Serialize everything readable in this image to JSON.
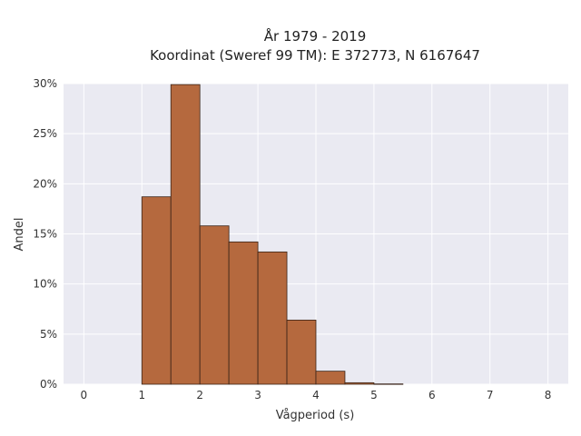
{
  "chart_data": {
    "type": "bar",
    "title_line1": "År 1979 - 2019",
    "title_line2": "Koordinat (Sweref 99 TM): E 372773, N 6167647",
    "xlabel": "Vågperiod (s)",
    "ylabel": "Andel",
    "xlim": [
      -0.35,
      8.35
    ],
    "ylim": [
      0,
      0.3
    ],
    "x_ticks": [
      0,
      1,
      2,
      3,
      4,
      5,
      6,
      7,
      8
    ],
    "x_tick_labels": [
      "0",
      "1",
      "2",
      "3",
      "4",
      "5",
      "6",
      "7",
      "8"
    ],
    "y_ticks": [
      0,
      0.05,
      0.1,
      0.15,
      0.2,
      0.25,
      0.3
    ],
    "y_tick_labels": [
      "0%",
      "5%",
      "10%",
      "15%",
      "20%",
      "25%",
      "30%"
    ],
    "bin_width": 0.5,
    "bins": [
      {
        "start": 1.0,
        "value": 0.187
      },
      {
        "start": 1.5,
        "value": 0.299
      },
      {
        "start": 2.0,
        "value": 0.158
      },
      {
        "start": 2.5,
        "value": 0.142
      },
      {
        "start": 3.0,
        "value": 0.132
      },
      {
        "start": 3.5,
        "value": 0.064
      },
      {
        "start": 4.0,
        "value": 0.013
      },
      {
        "start": 4.5,
        "value": 0.0015
      },
      {
        "start": 5.0,
        "value": 0.0003
      }
    ],
    "grid": true,
    "colors": {
      "bar_fill": "#b5693e",
      "bar_edge": "#3a2418",
      "plot_background": "#eaeaf2",
      "grid": "#ffffff"
    }
  }
}
